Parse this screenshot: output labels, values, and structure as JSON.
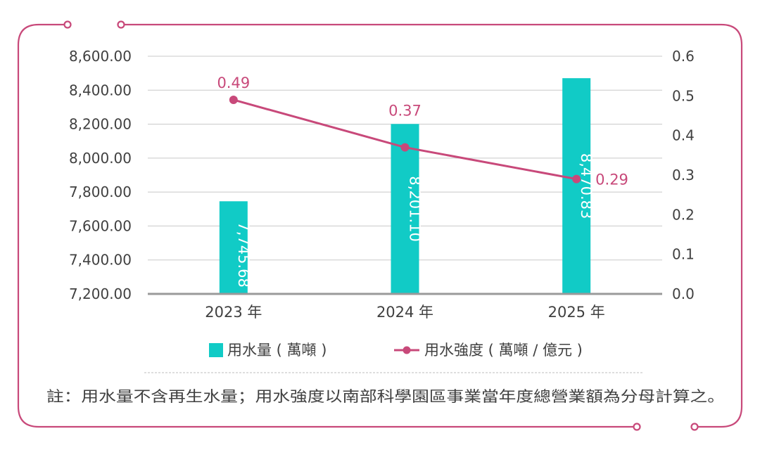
{
  "colors": {
    "frame": "#c8497a",
    "bar": "#11cbc6",
    "line": "#c8497a",
    "grid": "#c8c8c8",
    "baseline": "#9a9a9a",
    "text": "#404040",
    "bar_label": "#ffffff",
    "divider": "#bcbcbc"
  },
  "chart_data": {
    "type": "bar",
    "categories": [
      "2023 年",
      "2024 年",
      "2025 年"
    ],
    "series": [
      {
        "name": "用水量 ( 萬噸 )",
        "type": "bar",
        "axis": "left",
        "values": [
          7745.68,
          8201.1,
          8470.83
        ],
        "labels": [
          "7,745.68",
          "8,201.10",
          "8,470.83"
        ]
      },
      {
        "name": "用水強度 ( 萬噸 / 億元 )",
        "type": "line",
        "axis": "right",
        "values": [
          0.49,
          0.37,
          0.29
        ],
        "labels": [
          "0.49",
          "0.37",
          "0.29"
        ]
      }
    ],
    "y_left": {
      "ylim": [
        7200,
        8600
      ],
      "ticks": [
        7200,
        7400,
        7600,
        7800,
        8000,
        8200,
        8400,
        8600
      ],
      "tick_labels": [
        "7,200.00",
        "7,400.00",
        "7,600.00",
        "7,800.00",
        "8,000.00",
        "8,200.00",
        "8,400.00",
        "8,600.00"
      ]
    },
    "y_right": {
      "ylim": [
        0,
        0.6
      ],
      "ticks": [
        0,
        0.1,
        0.2,
        0.3,
        0.4,
        0.5,
        0.6
      ],
      "tick_labels": [
        "0.0",
        "0.1",
        "0.2",
        "0.3",
        "0.4",
        "0.5",
        "0.6"
      ]
    },
    "grid": true,
    "legend_position": "bottom"
  },
  "note": "註：用水量不含再生水量；用水強度以南部科學園區事業當年度總營業額為分母計算之。"
}
